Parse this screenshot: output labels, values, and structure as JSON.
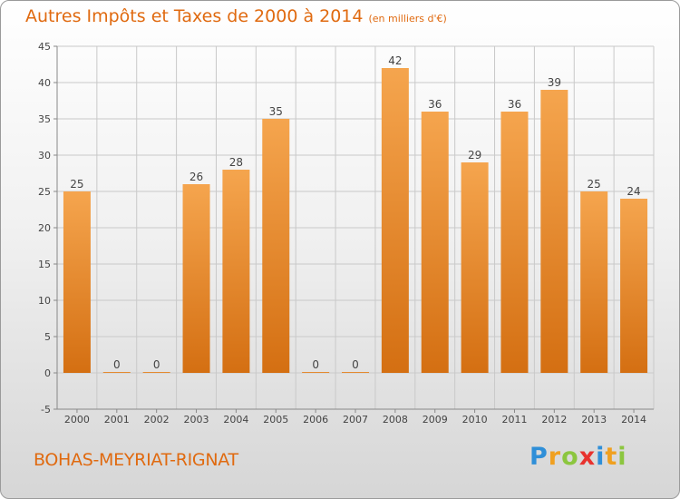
{
  "header": {
    "title": "Autres Impôts et Taxes de 2000 à 2014",
    "unit": "(en milliers d'€)"
  },
  "footer": {
    "commune": "BOHAS-MEYRIAT-RIGNAT",
    "brand": {
      "letters": [
        "P",
        "r",
        "o",
        "x",
        "i",
        "t",
        "i"
      ],
      "colors": [
        "#2f8fd8",
        "#f0a020",
        "#8cc63f",
        "#e8322e",
        "#2f8fd8",
        "#f0a020",
        "#8cc63f"
      ]
    }
  },
  "colors": {
    "bar_light": "#f5a54e",
    "bar_dark": "#d46f12",
    "title": "#e06a10"
  },
  "chart_data": {
    "type": "bar",
    "categories": [
      "2000",
      "2001",
      "2002",
      "2003",
      "2004",
      "2005",
      "2006",
      "2007",
      "2008",
      "2009",
      "2010",
      "2011",
      "2012",
      "2013",
      "2014"
    ],
    "values": [
      25,
      0,
      0,
      26,
      28,
      35,
      0,
      0,
      42,
      36,
      29,
      36,
      39,
      25,
      24
    ],
    "data_labels": [
      "25",
      "0",
      "0",
      "26",
      "28",
      "35",
      "0",
      "0",
      "42",
      "36",
      "29",
      "36",
      "39",
      "25",
      "24"
    ],
    "yticks": [
      "-5",
      "0",
      "5",
      "10",
      "15",
      "20",
      "25",
      "30",
      "35",
      "40",
      "45"
    ],
    "ylim": [
      -5,
      45
    ],
    "grid": true,
    "title": "Autres Impôts et Taxes de 2000 à 2014",
    "xlabel": "",
    "ylabel": ""
  }
}
